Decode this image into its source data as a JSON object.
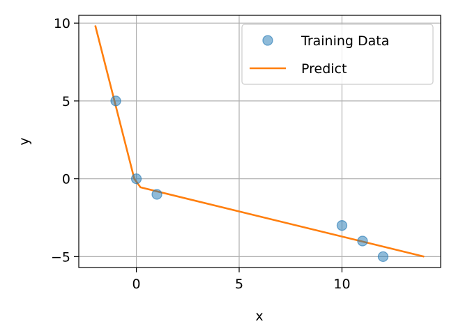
{
  "chart_data": {
    "type": "scatter",
    "xlabel": "x",
    "ylabel": "y",
    "xlim": [
      -2.8,
      14.8
    ],
    "ylim": [
      -5.7,
      10.5
    ],
    "xticks": [
      0,
      5,
      10
    ],
    "yticks": [
      -5,
      0,
      5,
      10
    ],
    "xtick_labels": [
      "0",
      "5",
      "10"
    ],
    "ytick_labels": [
      "−5",
      "0",
      "5",
      "10"
    ],
    "grid": true,
    "legend_position": "top-right",
    "series": [
      {
        "name": "Training Data",
        "kind": "scatter",
        "color": "#1f77b4",
        "x": [
          -1,
          0,
          1,
          10,
          11,
          12
        ],
        "y": [
          5,
          0,
          -1,
          -3,
          -4,
          -5
        ]
      },
      {
        "name": "Predict",
        "kind": "line",
        "color": "#ff7f0e",
        "x": [
          -2,
          -0.1,
          0.2,
          14
        ],
        "y": [
          9.85,
          0.0,
          -0.55,
          -5.0
        ]
      }
    ]
  }
}
